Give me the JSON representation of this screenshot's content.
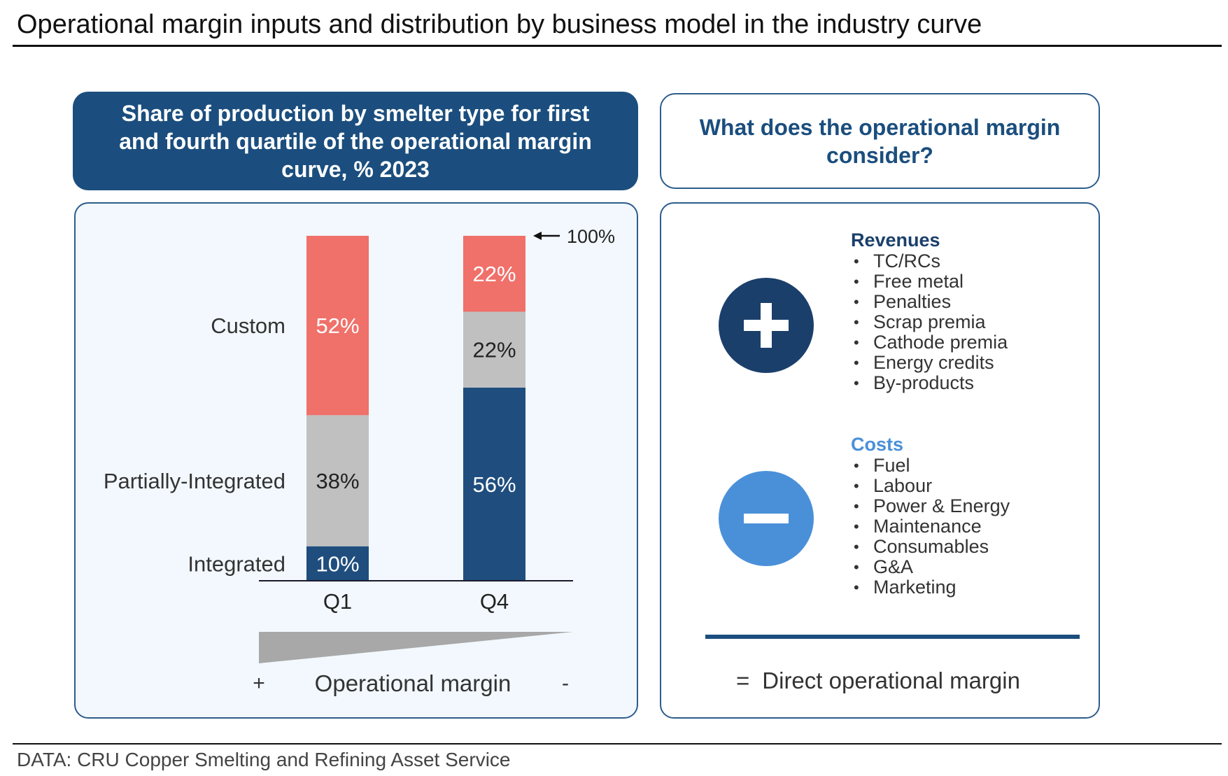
{
  "page": {
    "title": "Operational margin inputs and distribution by business model in the industry curve",
    "footer": "DATA: CRU Copper Smelting and Refining Asset Service"
  },
  "left_header": "Share of production by smelter type for first and fourth quartile of the operational margin curve, % 2023",
  "right_header": "What does the operational margin consider?",
  "chart_data": {
    "type": "bar",
    "stacked": true,
    "title": "Share of production by smelter type for first and fourth quartile of the operational margin curve, % 2023",
    "categories": [
      "Q1",
      "Q4"
    ],
    "series": [
      {
        "name": "Integrated",
        "values": [
          10,
          56
        ],
        "color": "#1f4e7e",
        "label_color": "#ffffff"
      },
      {
        "name": "Partially-Integrated",
        "values": [
          38,
          22
        ],
        "color": "#c0c0c0",
        "label_color": "#222222"
      },
      {
        "name": "Custom",
        "values": [
          52,
          22
        ],
        "color": "#f0706a",
        "label_color": "#ffffff"
      }
    ],
    "value_suffix": "%",
    "ylim": [
      0,
      100
    ],
    "total_annotation": "100%",
    "legend_placement": "left",
    "xlabel": "Operational margin",
    "x_axis_high_marker": "+",
    "x_axis_low_marker": "-",
    "grid": false
  },
  "right_panel": {
    "revenues": {
      "title": "Revenues",
      "icon": "plus-icon",
      "items": [
        "TC/RCs",
        "Free metal",
        "Penalties",
        "Scrap premia",
        "Cathode premia",
        "Energy credits",
        "By-products"
      ]
    },
    "costs": {
      "title": "Costs",
      "icon": "minus-icon",
      "items": [
        "Fuel",
        "Labour",
        "Power & Energy",
        "Maintenance",
        "Consumables",
        "G&A",
        "Marketing"
      ]
    },
    "result": {
      "symbol": "=",
      "label": "Direct operational margin"
    }
  },
  "colors": {
    "navy": "#1b4e7e",
    "dark_navy": "#1b3f6b",
    "light_blue": "#4a90d9",
    "coral": "#f0706a",
    "gray": "#c0c0c0",
    "panel_bg": "#f2f8fd"
  }
}
